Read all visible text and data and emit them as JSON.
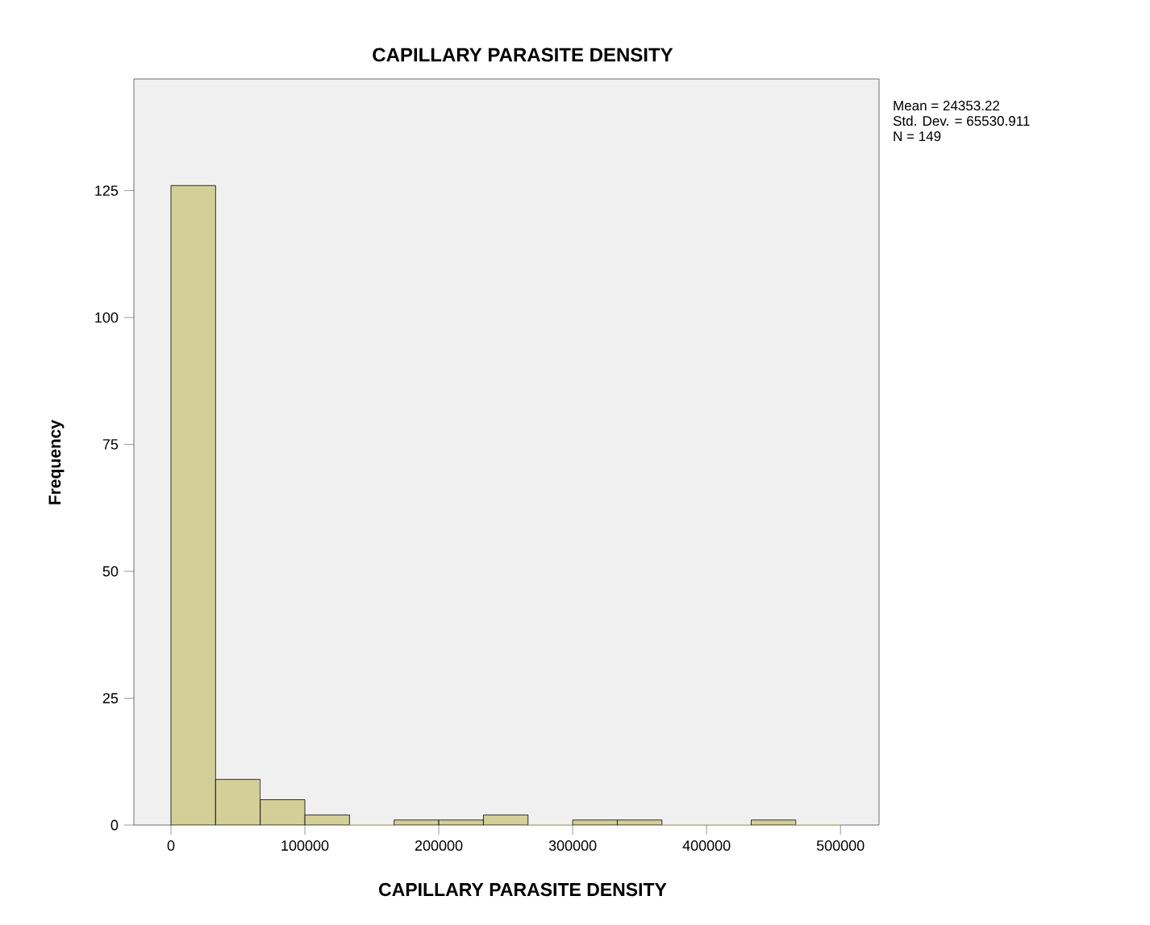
{
  "chart_data": {
    "type": "histogram",
    "title": "CAPILLARY PARASITE DENSITY",
    "xlabel": "CAPILLARY PARASITE DENSITY",
    "ylabel": "Frequency",
    "bins": [
      0,
      33333.33,
      66666.67,
      100000,
      133333.33,
      166666.67,
      200000,
      233333.33,
      266666.67,
      300000,
      333333.33,
      366666.67,
      400000,
      433333.33,
      466666.67,
      500000
    ],
    "values": [
      126,
      9,
      5,
      2,
      0,
      1,
      1,
      2,
      0,
      1,
      1,
      0,
      0,
      1,
      0
    ],
    "color": "#d3cf98",
    "xlim": [
      -27700,
      528800
    ],
    "ylim": [
      0,
      147
    ],
    "xticks": [
      0,
      100000,
      200000,
      300000,
      400000,
      500000
    ],
    "yticks": [
      0,
      25,
      50,
      75,
      100,
      125
    ],
    "grid": false,
    "annotations": [
      "Mean = 24353.22",
      "Std. Dev. = 65530.911",
      "N = 149"
    ]
  }
}
